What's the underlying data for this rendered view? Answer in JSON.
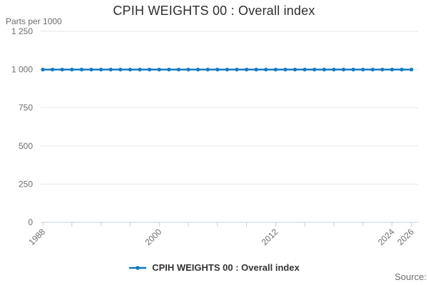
{
  "title": "CPIH WEIGHTS 00 : Overall index",
  "y_unit_label": "Parts per 1000",
  "source_label": "Source:",
  "legend": {
    "label": "CPIH WEIGHTS 00 : Overall index"
  },
  "colors": {
    "line": "#1179be",
    "grid": "#e6e6e6",
    "axis": "#c5cfdf",
    "tick_text": "#6d6d6d",
    "title_text": "#2f2f2f",
    "legend_text": "#333333"
  },
  "chart_data": {
    "type": "line",
    "title": "CPIH WEIGHTS 00 : Overall index",
    "xlabel": "",
    "ylabel": "Parts per 1000",
    "ylim": [
      0,
      1250
    ],
    "grid": "horizontal",
    "legend_position": "bottom",
    "x": [
      1988,
      1989,
      1990,
      1991,
      1992,
      1993,
      1994,
      1995,
      1996,
      1997,
      1998,
      1999,
      2000,
      2001,
      2002,
      2003,
      2004,
      2005,
      2006,
      2007,
      2008,
      2009,
      2010,
      2011,
      2012,
      2013,
      2014,
      2015,
      2016,
      2017,
      2018,
      2019,
      2020,
      2021,
      2022,
      2023,
      2024,
      2025,
      2026
    ],
    "series": [
      {
        "name": "CPIH WEIGHTS 00 : Overall index",
        "values": [
          1000,
          1000,
          1000,
          1000,
          1000,
          1000,
          1000,
          1000,
          1000,
          1000,
          1000,
          1000,
          1000,
          1000,
          1000,
          1000,
          1000,
          1000,
          1000,
          1000,
          1000,
          1000,
          1000,
          1000,
          1000,
          1000,
          1000,
          1000,
          1000,
          1000,
          1000,
          1000,
          1000,
          1000,
          1000,
          1000,
          1000,
          1000,
          1000
        ]
      }
    ],
    "y_ticks": [
      {
        "value": 0,
        "label": "0"
      },
      {
        "value": 250,
        "label": "250"
      },
      {
        "value": 500,
        "label": "500"
      },
      {
        "value": 750,
        "label": "750"
      },
      {
        "value": 1000,
        "label": "1 000"
      },
      {
        "value": 1250,
        "label": "1 250"
      }
    ],
    "x_ticks": [
      1988,
      1991,
      1994,
      1997,
      2000,
      2003,
      2006,
      2009,
      2012,
      2015,
      2018,
      2021,
      2024,
      2026
    ],
    "x_labels": [
      1988,
      2000,
      2012,
      2024,
      2026
    ]
  }
}
